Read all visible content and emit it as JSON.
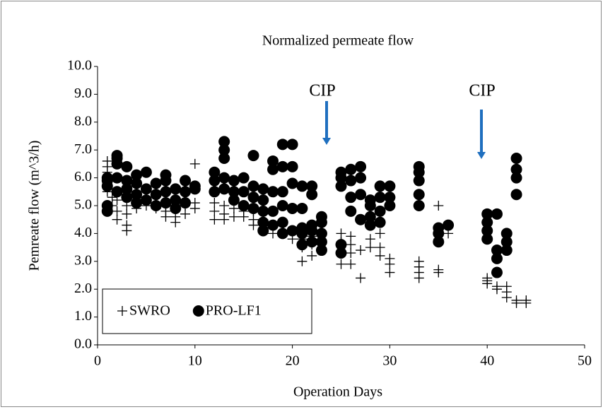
{
  "chart_data": {
    "type": "scatter",
    "title": "Normalized permeate flow",
    "x_label": "Operation Days",
    "y_label": "Pemreate flow    (m^3/h)",
    "xlim": [
      0,
      50
    ],
    "xticks": [
      0,
      10,
      20,
      30,
      40,
      50
    ],
    "ylim": [
      0,
      10
    ],
    "yticks": [
      {
        "value": 0,
        "label": "0.0"
      },
      {
        "value": 1,
        "label": "1.0"
      },
      {
        "value": 2,
        "label": "2.0"
      },
      {
        "value": 3,
        "label": "3.0"
      },
      {
        "value": 4,
        "label": "4.0"
      },
      {
        "value": 5,
        "label": "5.0"
      },
      {
        "value": 6,
        "label": "6.0"
      },
      {
        "value": 7,
        "label": "7.0"
      },
      {
        "value": 8,
        "label": "8.0"
      },
      {
        "value": 9,
        "label": "9.0"
      },
      {
        "value": 10,
        "label": "10.0"
      }
    ],
    "legend": "lower left",
    "annotations": [
      {
        "text": "CIP"
      },
      {
        "text": "CIP"
      }
    ],
    "series": [
      {
        "name": "SWRO",
        "color": "#000000",
        "marker": "plus",
        "x": [
          1,
          1,
          1,
          1,
          1,
          1.5,
          1.5,
          2,
          2,
          2,
          3,
          3,
          3,
          3,
          4,
          4,
          4,
          5,
          5,
          6,
          6,
          7,
          7,
          7,
          8,
          8,
          8,
          9,
          9,
          10,
          10,
          10,
          12,
          12,
          12,
          13,
          13,
          13,
          14,
          14,
          15,
          15,
          16,
          16,
          16,
          17,
          17,
          18,
          18,
          19,
          19,
          20,
          20,
          21,
          21,
          21,
          22,
          22,
          22,
          23,
          23,
          25,
          25,
          25,
          25,
          26,
          26,
          26,
          26,
          27,
          27,
          28,
          28,
          29,
          29,
          29,
          30,
          30,
          30,
          33,
          33,
          33,
          33,
          35,
          35,
          35,
          35,
          35,
          36,
          40,
          40,
          40,
          41,
          41,
          42,
          42,
          42,
          43,
          43,
          44,
          44
        ],
        "values": [
          6.6,
          6.4,
          6.2,
          5.8,
          5.5,
          5.3,
          5.0,
          4.5,
          4.8,
          5.2,
          4.1,
          4.3,
          4.7,
          5.0,
          4.9,
          5.1,
          5.3,
          5.0,
          5.3,
          4.9,
          5.1,
          4.6,
          4.8,
          5.0,
          4.4,
          4.6,
          4.9,
          4.7,
          5.0,
          6.5,
          5.1,
          4.9,
          4.5,
          4.8,
          5.1,
          4.5,
          4.7,
          5.0,
          4.6,
          4.9,
          4.6,
          4.8,
          4.3,
          4.5,
          4.8,
          4.2,
          4.5,
          4.0,
          4.3,
          4.1,
          4.4,
          3.8,
          4.1,
          3.0,
          3.5,
          3.8,
          3.2,
          3.6,
          3.9,
          3.4,
          3.7,
          2.9,
          3.3,
          3.7,
          4.0,
          2.9,
          3.3,
          3.6,
          3.9,
          2.4,
          3.4,
          3.5,
          3.8,
          3.2,
          3.5,
          4.0,
          2.6,
          2.9,
          3.1,
          2.4,
          2.6,
          2.8,
          3.0,
          2.6,
          2.7,
          5.0,
          4.0,
          3.8,
          4.0,
          2.2,
          2.3,
          2.4,
          2.0,
          2.1,
          1.7,
          1.9,
          2.1,
          1.5,
          1.6,
          1.5,
          1.6
        ]
      },
      {
        "name": "PRO-LF1",
        "color": "#000000",
        "marker": "circle",
        "x": [
          1,
          1,
          1,
          1,
          1,
          2,
          2,
          2,
          2,
          2,
          3,
          3,
          3,
          3,
          4,
          4,
          4,
          4,
          5,
          5,
          5,
          6,
          6,
          6,
          7,
          7,
          7,
          7,
          8,
          8,
          8,
          9,
          9,
          9,
          10,
          10,
          12,
          12,
          12,
          13,
          13,
          13,
          13,
          13,
          14,
          14,
          14,
          15,
          15,
          15,
          16,
          16,
          16,
          16,
          17,
          17,
          17,
          17,
          17,
          18,
          18,
          18,
          18,
          18,
          19,
          19,
          19,
          19,
          19,
          19,
          20,
          20,
          20,
          20,
          20,
          21,
          21,
          21,
          21,
          21,
          22,
          22,
          22,
          22,
          22,
          23,
          23,
          23,
          23,
          23,
          25,
          25,
          25,
          25,
          25,
          26,
          26,
          26,
          26,
          27,
          27,
          27,
          27,
          28,
          28,
          28,
          28,
          29,
          29,
          29,
          29,
          30,
          30,
          30,
          33,
          33,
          33,
          33,
          33,
          35,
          35,
          35,
          36,
          40,
          40,
          40,
          40,
          41,
          41,
          41,
          41,
          42,
          42,
          42,
          43,
          43,
          43,
          43
        ],
        "values": [
          4.8,
          5.0,
          5.7,
          5.9,
          6.0,
          5.5,
          6.0,
          6.5,
          6.8,
          6.7,
          5.3,
          5.6,
          5.9,
          6.4,
          5.1,
          5.4,
          5.8,
          6.1,
          5.2,
          5.6,
          6.2,
          5.0,
          5.4,
          5.8,
          5.1,
          5.5,
          5.9,
          6.1,
          4.9,
          5.2,
          5.6,
          5.1,
          5.5,
          5.9,
          5.7,
          5.6,
          5.5,
          5.9,
          6.2,
          5.6,
          6.0,
          6.7,
          7.0,
          7.3,
          5.2,
          5.5,
          5.9,
          5.0,
          5.5,
          6.0,
          4.9,
          5.3,
          6.8,
          5.7,
          4.1,
          4.4,
          4.8,
          5.2,
          5.6,
          4.3,
          4.8,
          5.5,
          6.3,
          6.6,
          4.0,
          4.4,
          5.0,
          5.5,
          6.4,
          7.2,
          4.1,
          4.9,
          5.8,
          6.4,
          7.2,
          3.6,
          4.0,
          4.2,
          4.9,
          5.7,
          3.7,
          4.1,
          4.3,
          5.4,
          5.7,
          3.4,
          3.7,
          4.0,
          4.4,
          4.6,
          3.3,
          3.6,
          5.7,
          6.0,
          6.2,
          4.8,
          5.3,
          5.9,
          6.3,
          4.5,
          5.4,
          6.0,
          6.4,
          4.3,
          4.6,
          5.0,
          5.2,
          4.4,
          4.8,
          5.3,
          5.7,
          5.0,
          5.3,
          5.7,
          5.0,
          5.4,
          5.9,
          6.2,
          6.4,
          3.7,
          4.0,
          4.2,
          4.3,
          3.8,
          4.1,
          4.4,
          4.7,
          2.6,
          3.1,
          3.4,
          4.7,
          3.4,
          3.7,
          4.0,
          5.4,
          6.0,
          6.3,
          6.7
        ]
      }
    ]
  }
}
